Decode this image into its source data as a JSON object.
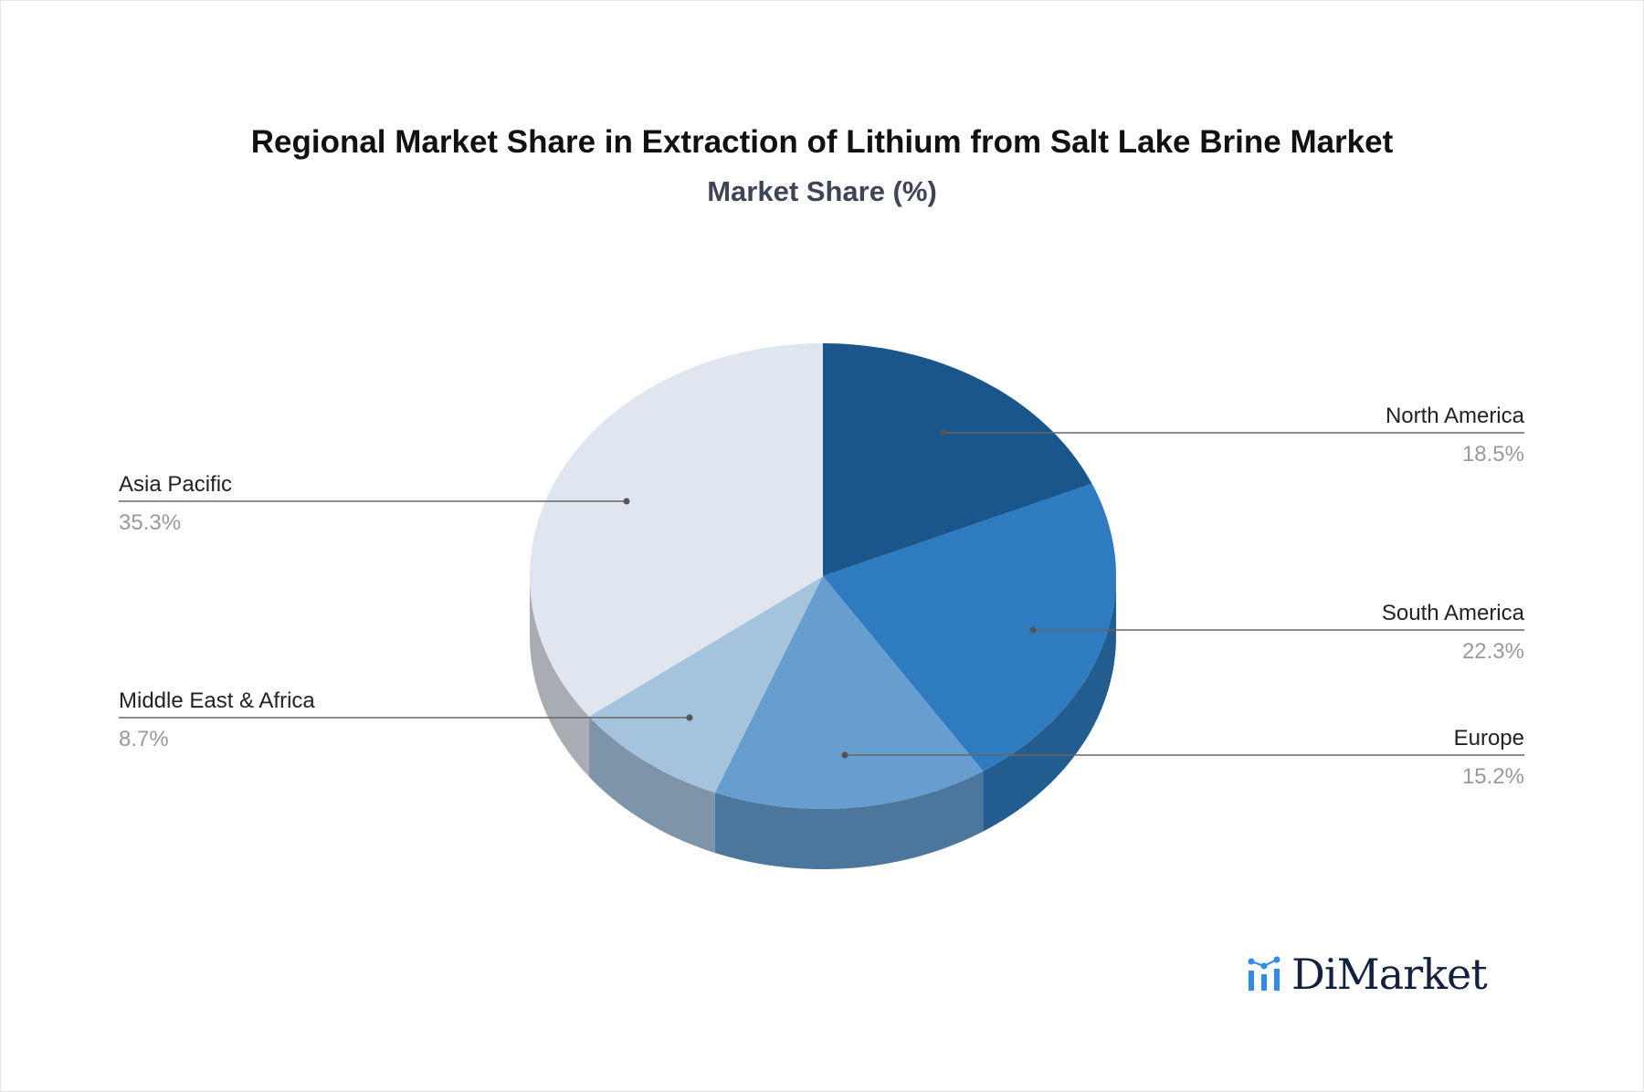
{
  "chart_data": {
    "type": "pie",
    "title": "Regional Market Share in Extraction of Lithium from Salt Lake Brine Market",
    "subtitle": "Market Share (%)",
    "categories": [
      "North America",
      "South America",
      "Europe",
      "Middle East & Africa",
      "Asia Pacific"
    ],
    "values": [
      18.5,
      22.3,
      15.2,
      8.7,
      35.3
    ],
    "value_labels": [
      "18.5%",
      "22.3%",
      "15.2%",
      "8.7%",
      "35.3%"
    ],
    "colors": [
      "#1a568b",
      "#2e7bbf",
      "#679ecf",
      "#a6c3de",
      "#dfe6ef"
    ],
    "side_colors": [
      "#15487a",
      "#235d90",
      "#4c769c",
      "#7e94a9",
      "#a8adb3"
    ],
    "start_angle_deg": 0,
    "direction": "clockwise",
    "style": "3d"
  },
  "logo": {
    "text": "DiMarket"
  }
}
